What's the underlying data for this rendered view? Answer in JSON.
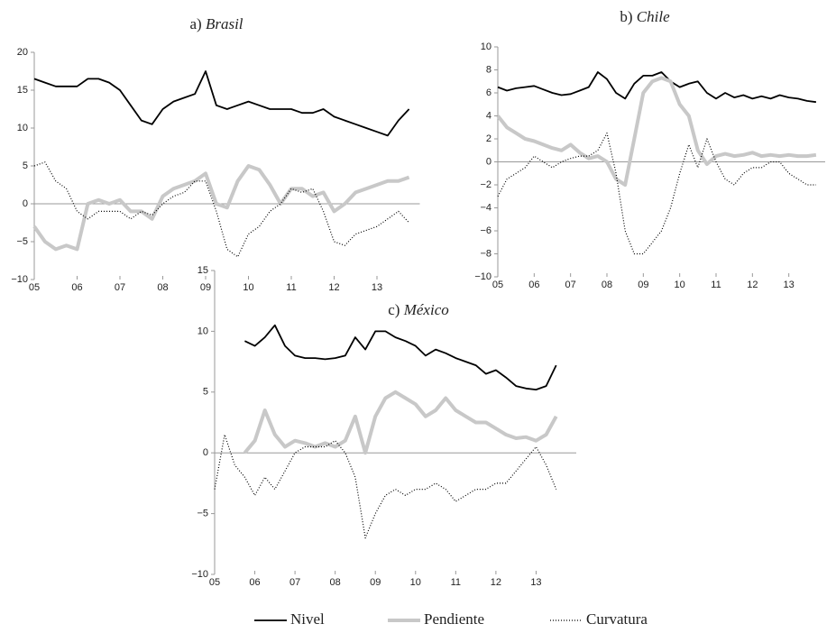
{
  "chart_data": [
    {
      "type": "line",
      "panel": "a)",
      "title": "Brasil",
      "x": [
        5,
        5.25,
        5.5,
        5.75,
        6,
        6.25,
        6.5,
        6.75,
        7,
        7.25,
        7.5,
        7.75,
        8,
        8.25,
        8.5,
        8.75,
        9,
        9.25,
        9.5,
        9.75,
        10,
        10.25,
        10.5,
        10.75,
        11,
        11.25,
        11.5,
        11.75,
        12,
        12.25,
        12.5,
        12.75,
        13,
        13.25,
        13.5,
        13.75
      ],
      "xlim": [
        5,
        14
      ],
      "xticks": [
        {
          "value": 5,
          "label": "05"
        },
        {
          "value": 6,
          "label": "06"
        },
        {
          "value": 7,
          "label": "07"
        },
        {
          "value": 8,
          "label": "08"
        },
        {
          "value": 9,
          "label": "09"
        },
        {
          "value": 10,
          "label": "10"
        },
        {
          "value": 11,
          "label": "11"
        },
        {
          "value": 12,
          "label": "12"
        },
        {
          "value": 13,
          "label": "13"
        }
      ],
      "ylim": [
        -10,
        20
      ],
      "yticks": [
        {
          "value": -10,
          "label": "−10"
        },
        {
          "value": -5,
          "label": "−5"
        },
        0,
        5,
        10,
        15,
        20
      ],
      "series": [
        {
          "name": "Nivel",
          "color": "#000000",
          "style": "solid",
          "values": [
            16.5,
            16,
            15.5,
            15.5,
            15.5,
            16.5,
            16.5,
            16,
            15,
            13,
            11,
            10.5,
            12.5,
            13.5,
            14,
            14.5,
            17.5,
            13,
            12.5,
            13,
            13.5,
            13,
            12.5,
            12.5,
            12.5,
            12,
            12,
            12.5,
            11.5,
            11,
            10.5,
            10,
            9.5,
            9,
            11,
            12.5
          ]
        },
        {
          "name": "Pendiente",
          "color": "#c8c8c8",
          "style": "thick",
          "values": [
            -3,
            -5,
            -6,
            -5.5,
            -6,
            0,
            0.5,
            0,
            0.5,
            -1,
            -1,
            -2,
            1,
            2,
            2.5,
            3,
            4,
            0,
            -0.5,
            3,
            5,
            4.5,
            2.5,
            0,
            2,
            2,
            1,
            1.5,
            -1,
            0,
            1.5,
            2,
            2.5,
            3,
            3,
            3.5
          ]
        },
        {
          "name": "Curvatura",
          "color": "#000000",
          "style": "dotted",
          "values": [
            5,
            5.5,
            3,
            2,
            -1,
            -2,
            -1,
            -1,
            -1,
            -2,
            -1,
            -1.5,
            0,
            1,
            1.5,
            3,
            3,
            -1,
            -6,
            -7,
            -4,
            -3,
            -1,
            0,
            2,
            1.5,
            2,
            -1,
            -5,
            -5.5,
            -4,
            -3.5,
            -3,
            -2,
            -1,
            -2.5
          ]
        }
      ]
    },
    {
      "type": "line",
      "panel": "b)",
      "title": "Chile",
      "x": [
        5,
        5.25,
        5.5,
        5.75,
        6,
        6.25,
        6.5,
        6.75,
        7,
        7.25,
        7.5,
        7.75,
        8,
        8.25,
        8.5,
        8.75,
        9,
        9.25,
        9.5,
        9.75,
        10,
        10.25,
        10.5,
        10.75,
        11,
        11.25,
        11.5,
        11.75,
        12,
        12.25,
        12.5,
        12.75,
        13,
        13.25,
        13.5,
        13.75
      ],
      "xlim": [
        5,
        14
      ],
      "xticks": [
        {
          "value": 5,
          "label": "05"
        },
        {
          "value": 6,
          "label": "06"
        },
        {
          "value": 7,
          "label": "07"
        },
        {
          "value": 8,
          "label": "08"
        },
        {
          "value": 9,
          "label": "09"
        },
        {
          "value": 10,
          "label": "10"
        },
        {
          "value": 11,
          "label": "11"
        },
        {
          "value": 12,
          "label": "12"
        },
        {
          "value": 13,
          "label": "13"
        }
      ],
      "ylim": [
        -10,
        10
      ],
      "yticks": [
        {
          "value": -10,
          "label": "−10"
        },
        {
          "value": -8,
          "label": "−8"
        },
        {
          "value": -6,
          "label": "−6"
        },
        {
          "value": -4,
          "label": "−4"
        },
        {
          "value": -2,
          "label": "−2"
        },
        0,
        2,
        4,
        6,
        8,
        10
      ],
      "series": [
        {
          "color": "#000000",
          "style": "solid",
          "values": [
            6.5,
            6.2,
            6.4,
            6.5,
            6.6,
            6.3,
            6,
            5.8,
            5.9,
            6.2,
            6.5,
            7.8,
            7.2,
            6,
            5.5,
            6.8,
            7.5,
            7.5,
            7.8,
            7,
            6.5,
            6.8,
            7,
            6,
            5.5,
            6,
            5.6,
            5.8,
            5.5,
            5.7,
            5.5,
            5.8,
            5.6,
            5.5,
            5.3,
            5.2
          ]
        },
        {
          "color": "#c8c8c8",
          "style": "thick",
          "values": [
            4,
            3,
            2.5,
            2,
            1.8,
            1.5,
            1.2,
            1,
            1.5,
            0.8,
            0.3,
            0.5,
            0,
            -1.5,
            -2,
            2,
            6,
            7,
            7.3,
            7,
            5,
            4,
            1,
            -0.2,
            0.5,
            0.7,
            0.5,
            0.6,
            0.8,
            0.5,
            0.6,
            0.5,
            0.6,
            0.5,
            0.5,
            0.6
          ]
        },
        {
          "color": "#000000",
          "style": "dotted",
          "values": [
            -3,
            -1.5,
            -1,
            -0.5,
            0.5,
            0,
            -0.5,
            0,
            0.3,
            0.5,
            0.5,
            1,
            2.5,
            -1,
            -6,
            -8,
            -8,
            -7,
            -6,
            -4,
            -1,
            1.5,
            -0.5,
            2,
            0,
            -1.5,
            -2,
            -1,
            -0.5,
            -0.5,
            0,
            0,
            -1,
            -1.5,
            -2,
            -2
          ]
        }
      ]
    },
    {
      "type": "line",
      "panel": "c)",
      "title": "México",
      "x": [
        5,
        5.25,
        5.5,
        5.75,
        6,
        6.25,
        6.5,
        6.75,
        7,
        7.25,
        7.5,
        7.75,
        8,
        8.25,
        8.5,
        8.75,
        9,
        9.25,
        9.5,
        9.75,
        10,
        10.25,
        10.5,
        10.75,
        11,
        11.25,
        11.5,
        11.75,
        12,
        12.25,
        12.5,
        12.75,
        13,
        13.25,
        13.5,
        13.75
      ],
      "xlim": [
        5,
        14
      ],
      "xticks": [
        {
          "value": 5,
          "label": "05"
        },
        {
          "value": 6,
          "label": "06"
        },
        {
          "value": 7,
          "label": "07"
        },
        {
          "value": 8,
          "label": "08"
        },
        {
          "value": 9,
          "label": "09"
        },
        {
          "value": 10,
          "label": "10"
        },
        {
          "value": 11,
          "label": "11"
        },
        {
          "value": 12,
          "label": "12"
        },
        {
          "value": 13,
          "label": "13"
        }
      ],
      "ylim": [
        -10,
        15
      ],
      "yticks": [
        {
          "value": -10,
          "label": "−10"
        },
        {
          "value": -5,
          "label": "−5"
        },
        0,
        5,
        10,
        15
      ],
      "series": [
        {
          "color": "#000000",
          "style": "solid",
          "values": [
            null,
            null,
            null,
            9.2,
            8.8,
            9.5,
            10.5,
            8.8,
            8,
            7.8,
            7.8,
            7.7,
            7.8,
            8,
            9.5,
            8.5,
            10,
            10,
            9.5,
            9.2,
            8.8,
            8,
            8.5,
            8.2,
            7.8,
            7.5,
            7.2,
            6.5,
            6.8,
            6.2,
            5.5,
            5.3,
            5.2,
            5.5,
            7.2,
            null
          ]
        },
        {
          "color": "#c8c8c8",
          "style": "thick",
          "values": [
            null,
            null,
            null,
            0,
            1,
            3.5,
            1.5,
            0.5,
            1,
            0.8,
            0.5,
            0.8,
            0.5,
            1,
            3,
            0,
            3,
            4.5,
            5,
            4.5,
            4,
            3,
            3.5,
            4.5,
            3.5,
            3,
            2.5,
            2.5,
            2,
            1.5,
            1.2,
            1.3,
            1,
            1.5,
            3,
            null
          ]
        },
        {
          "color": "#000000",
          "style": "dotted",
          "values": [
            -3,
            1.5,
            -1,
            -2,
            -3.5,
            -2,
            -3,
            -1.5,
            0,
            0.5,
            0.5,
            0.5,
            1,
            0,
            -2,
            -7,
            -5,
            -3.5,
            -3,
            -3.5,
            -3,
            -3,
            -2.5,
            -3,
            -4,
            -3.5,
            -3,
            -3,
            -2.5,
            -2.5,
            -1.5,
            -0.5,
            0.5,
            -1,
            -3,
            null
          ]
        }
      ]
    }
  ]
}
